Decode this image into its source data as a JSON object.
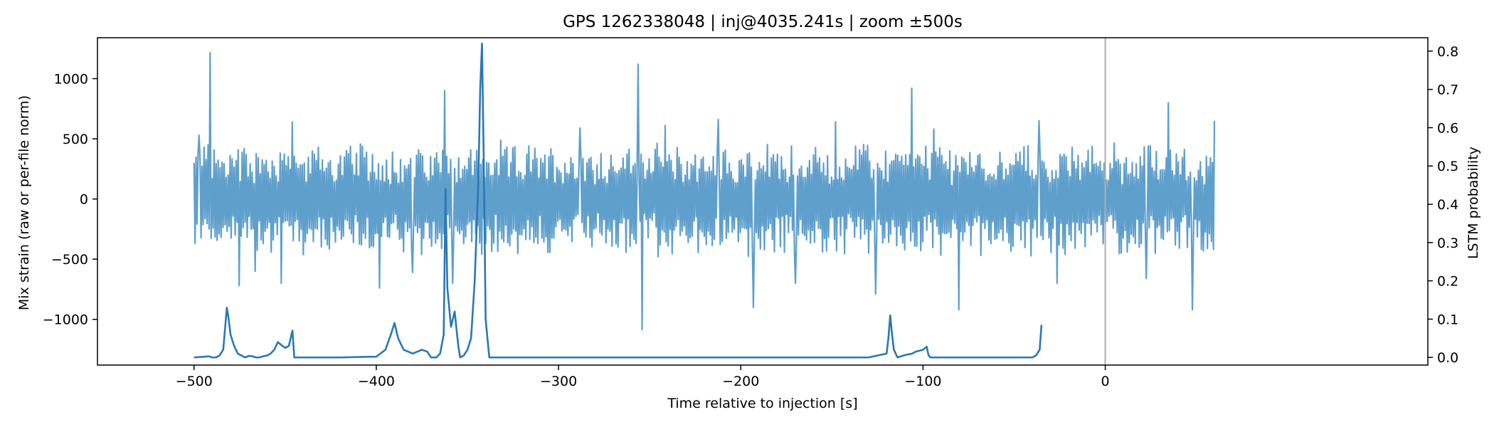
{
  "chart_data": {
    "type": "line",
    "title": "GPS 1262338048 | inj@4035.241s | zoom ±500s",
    "xlabel": "Time relative to injection [s]",
    "ylabel_left": "Mix strain (raw or per-file norm)",
    "ylabel_right": "LSTM probability",
    "xlim": [
      -553,
      177
    ],
    "ylim_left": [
      -1380,
      1340
    ],
    "ylim_right": [
      -0.02,
      0.835
    ],
    "x_ticks": [
      -500,
      -400,
      -300,
      -200,
      -100,
      0
    ],
    "x_tick_labels": [
      "−500",
      "−400",
      "−300",
      "−200",
      "−100",
      "0"
    ],
    "y_left_ticks": [
      -1000,
      -500,
      0,
      500,
      1000
    ],
    "y_left_tick_labels": [
      "−1000",
      "−500",
      "0",
      "500",
      "1000"
    ],
    "y_right_ticks": [
      0.0,
      0.1,
      0.2,
      0.3,
      0.4,
      0.5,
      0.6,
      0.7,
      0.8
    ],
    "y_right_tick_labels": [
      "0.0",
      "0.1",
      "0.2",
      "0.3",
      "0.4",
      "0.5",
      "0.6",
      "0.7",
      "0.8"
    ],
    "grid": false,
    "injection_marker_x": 0,
    "colors": {
      "strain": "#5f9fcc",
      "probability": "#2a78b4",
      "injection_line": "#b0b0b0",
      "axes": "#000000"
    },
    "series": [
      {
        "axis": "left",
        "x_range": [
          -500,
          60
        ],
        "typical_envelope": [
          -450,
          450
        ],
        "spikes": [
          {
            "x": -497,
            "y": 530
          },
          {
            "x": -491,
            "y": 1215
          },
          {
            "x": -475,
            "y": -720
          },
          {
            "x": -466,
            "y": -600
          },
          {
            "x": -452,
            "y": -700
          },
          {
            "x": -446,
            "y": 640
          },
          {
            "x": -398,
            "y": -740
          },
          {
            "x": -380,
            "y": -610
          },
          {
            "x": -362,
            "y": 900
          },
          {
            "x": -358,
            "y": -700
          },
          {
            "x": -288,
            "y": 590
          },
          {
            "x": -256,
            "y": 1120
          },
          {
            "x": -254,
            "y": -1085
          },
          {
            "x": -241,
            "y": 610
          },
          {
            "x": -212,
            "y": 660
          },
          {
            "x": -193,
            "y": -900
          },
          {
            "x": -170,
            "y": -700
          },
          {
            "x": -148,
            "y": 640
          },
          {
            "x": -126,
            "y": -790
          },
          {
            "x": -106,
            "y": 920
          },
          {
            "x": -94,
            "y": 580
          },
          {
            "x": -80,
            "y": -920
          },
          {
            "x": -36,
            "y": 650
          },
          {
            "x": -26,
            "y": -700
          },
          {
            "x": 23,
            "y": -660
          },
          {
            "x": 35,
            "y": 800
          },
          {
            "x": 48,
            "y": -920
          },
          {
            "x": 60,
            "y": 650
          }
        ]
      },
      {
        "axis": "right",
        "x": [
          -500,
          -494,
          -492,
          -490,
          -488,
          -486,
          -484,
          -482,
          -481,
          -480,
          -478,
          -476,
          -474,
          -472,
          -470,
          -468,
          -466,
          -464,
          -462,
          -460,
          -458,
          -456,
          -454,
          -452,
          -450,
          -448,
          -447,
          -446,
          -445,
          -440,
          -420,
          -400,
          -395,
          -392,
          -390,
          -388,
          -385,
          -380,
          -375,
          -372,
          -370,
          -367,
          -365,
          -363,
          -362,
          -361,
          -359,
          -357,
          -355,
          -354,
          -352,
          -350,
          -348,
          -346,
          -344,
          -343,
          -342,
          -341,
          -340,
          -338,
          -330,
          -300,
          -250,
          -200,
          -150,
          -130,
          -120,
          -119,
          -118,
          -117,
          -116,
          -114,
          -112,
          -110,
          -108,
          -106,
          -104,
          -100,
          -98,
          -97,
          -96,
          -94,
          -90,
          -85,
          -80,
          -70,
          -60,
          -50,
          -45,
          -40,
          -38,
          -36,
          -35
        ],
        "y": [
          0.0,
          0.002,
          0.003,
          0.0,
          0.0,
          0.005,
          0.02,
          0.13,
          0.1,
          0.06,
          0.03,
          0.01,
          0.005,
          0.0,
          0.004,
          0.003,
          0.0,
          0.0,
          0.003,
          0.005,
          0.01,
          0.02,
          0.04,
          0.032,
          0.025,
          0.03,
          0.05,
          0.07,
          0.0,
          0.0,
          0.0,
          0.002,
          0.02,
          0.06,
          0.09,
          0.05,
          0.02,
          0.01,
          0.02,
          0.015,
          0.0,
          0.0,
          0.01,
          0.06,
          0.44,
          0.18,
          0.08,
          0.12,
          0.03,
          0.0,
          0.005,
          0.02,
          0.05,
          0.2,
          0.46,
          0.7,
          0.82,
          0.5,
          0.1,
          0.0,
          0.0,
          0.0,
          0.0,
          0.0,
          0.0,
          0.0,
          0.01,
          0.05,
          0.11,
          0.06,
          0.02,
          0.0,
          0.003,
          0.006,
          0.008,
          0.01,
          0.015,
          0.02,
          0.028,
          0.006,
          0.0,
          0.0,
          0.0,
          0.0,
          0.0,
          0.0,
          0.0,
          0.0,
          0.0,
          0.0,
          0.005,
          0.02,
          0.085
        ]
      }
    ]
  }
}
